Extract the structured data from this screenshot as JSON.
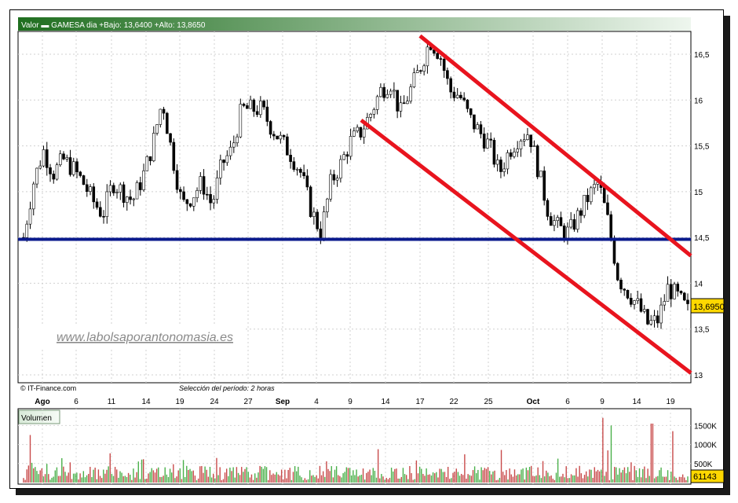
{
  "header": {
    "text": "Valor  ▬ GAMESA   dia +Bajo: 13,6400 +Alto: 13,8650"
  },
  "watermark": "www.labolsaporantonomasia.es",
  "source_credit": "© IT-Finance.com",
  "period_note": "Selección del período: 2 horas",
  "price_box": "13,6950",
  "volume_box": "61143",
  "volume_label": "Volumen",
  "colors": {
    "up_candle": "#006400",
    "down_candle": "#b40000",
    "channel": "#e8141e",
    "support": "#0a1a8c",
    "vol_up": "#4ab04a",
    "vol_down": "#c84a4a",
    "header_start": "#1f6e1f",
    "header_end": "#e6f2e6"
  },
  "chart_data": [
    {
      "type": "candlestick",
      "title": "GAMESA",
      "ylim": [
        13.0,
        16.75
      ],
      "y_ticks": [
        "16,5",
        "16",
        "15,5",
        "15",
        "14,5",
        "14",
        "13,5",
        "13"
      ],
      "y_tick_values": [
        16.5,
        16.0,
        15.5,
        15.0,
        14.5,
        14.0,
        13.5,
        13.0
      ],
      "x_ticks": [
        "Ago",
        "6",
        "11",
        "14",
        "19",
        "24",
        "27",
        "Sep",
        "4",
        "9",
        "14",
        "17",
        "22",
        "25",
        "Oct",
        "6",
        "9",
        "14",
        "19"
      ],
      "close_path": [
        14.5,
        15.1,
        15.45,
        15.2,
        15.35,
        15.25,
        15.1,
        14.9,
        14.75,
        15.1,
        15.0,
        14.9,
        15.15,
        15.5,
        16.0,
        15.4,
        14.85,
        14.95,
        15.1,
        14.85,
        15.3,
        15.45,
        15.9,
        15.9,
        15.9,
        15.7,
        15.55,
        15.4,
        15.2,
        14.8,
        14.55,
        15.1,
        15.3,
        15.55,
        15.65,
        15.85,
        16.1,
        16.2,
        15.85,
        16.1,
        16.35,
        16.65,
        16.5,
        16.1,
        16.05,
        15.8,
        15.65,
        15.5,
        15.2,
        15.45,
        15.6,
        15.65,
        15.2,
        14.75,
        14.6,
        14.55,
        14.75,
        14.95,
        15.1,
        14.65,
        14.05,
        13.9,
        13.75,
        13.55,
        13.6,
        13.95,
        13.85,
        13.7
      ],
      "candle_count": 200,
      "support_line": 14.48,
      "channel_upper": {
        "start": [
          "Sep 17",
          16.7
        ],
        "end": [
          "Oct 20",
          14.3
        ]
      },
      "channel_lower": {
        "start": [
          "Sep 11",
          15.78
        ],
        "end": [
          "Oct 20",
          13.02
        ]
      },
      "last_price": 13.695,
      "day_low": 13.64,
      "day_high": 13.865
    },
    {
      "type": "bar",
      "title": "Volumen",
      "y_ticks": [
        "1500K",
        "1000K",
        "500K"
      ],
      "y_tick_values": [
        1500,
        1000,
        500
      ],
      "units": "K",
      "ylim": [
        0,
        1900
      ],
      "last_value": 61143,
      "spikes": [
        {
          "near": "Ago",
          "value": 1250
        },
        {
          "near": "Oct 8",
          "value": 1700
        },
        {
          "near": "Oct 9",
          "value": 1650
        },
        {
          "near": "Oct 9",
          "value": 1500
        },
        {
          "near": "Oct 17",
          "value": 1550
        },
        {
          "near": "Oct 20",
          "value": 1350
        }
      ]
    }
  ]
}
